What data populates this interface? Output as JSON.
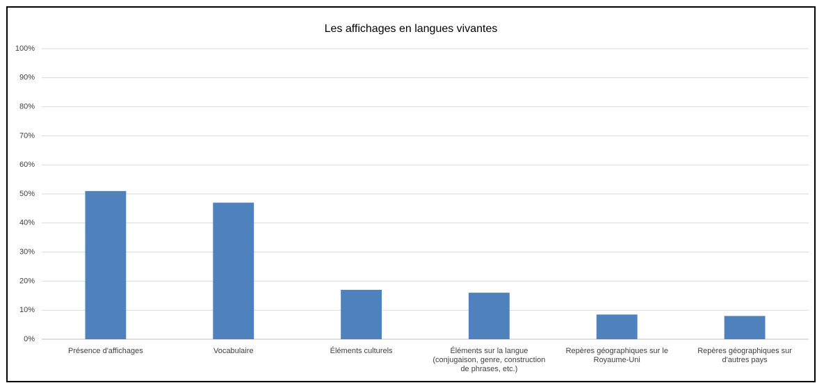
{
  "chart_data": {
    "type": "bar",
    "title": "Les affichages en langues vivantes",
    "categories": [
      "Présence d'affichages",
      "Vocabulaire",
      "Éléments culturels",
      "Éléments sur la langue (conjugaison, genre, construction de phrases, etc.)",
      "Repères géographiques sur le Royaume-Uni",
      "Repères géographiques sur d'autres pays"
    ],
    "values": [
      51,
      47,
      17,
      16,
      8.5,
      8
    ],
    "color": "#4f81bd",
    "ylim": [
      0,
      100
    ],
    "yticks": [
      {
        "value": 0,
        "label": "0%"
      },
      {
        "value": 10,
        "label": "10%"
      },
      {
        "value": 20,
        "label": "20%"
      },
      {
        "value": 30,
        "label": "30%"
      },
      {
        "value": 40,
        "label": "40%"
      },
      {
        "value": 50,
        "label": "50%"
      },
      {
        "value": 60,
        "label": "60%"
      },
      {
        "value": 70,
        "label": "70%"
      },
      {
        "value": 80,
        "label": "80%"
      },
      {
        "value": 90,
        "label": "90%"
      },
      {
        "value": 100,
        "label": "100%"
      }
    ],
    "grid": true
  }
}
